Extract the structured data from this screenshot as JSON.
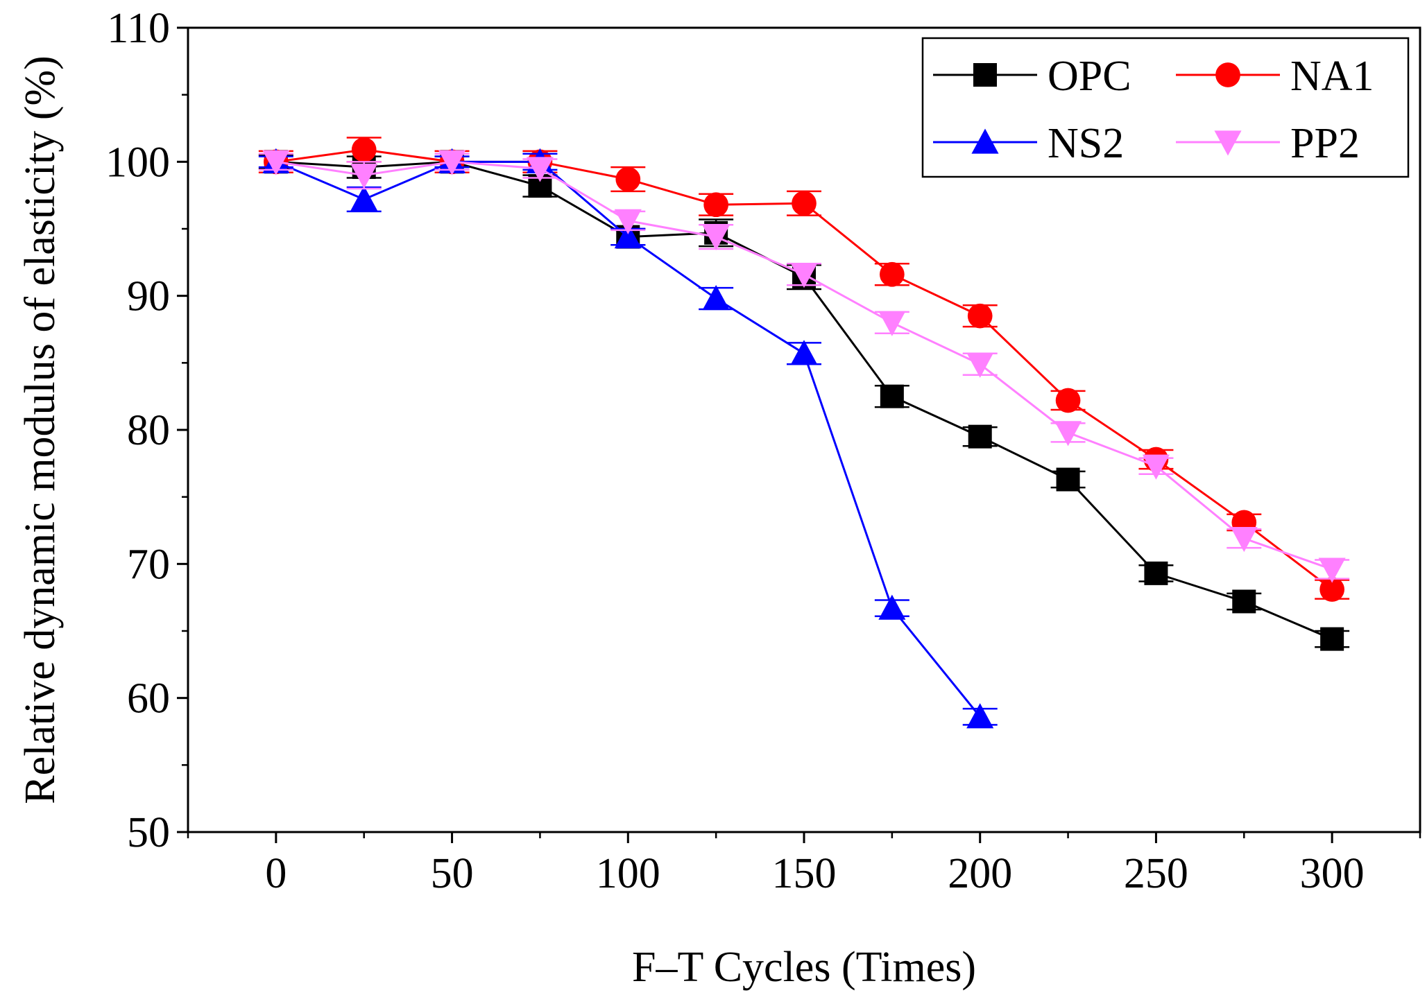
{
  "chart_data": {
    "type": "line",
    "xlabel": "F–T Cycles (Times)",
    "ylabel": "Relative dynamic modulus of elasticity (%)",
    "xlim": [
      -25,
      325
    ],
    "ylim": [
      50,
      110
    ],
    "x_ticks": [
      0,
      50,
      100,
      150,
      200,
      250,
      300
    ],
    "y_ticks": [
      50,
      60,
      70,
      80,
      90,
      100,
      110
    ],
    "x_tick_labels": [
      "0",
      "50",
      "100",
      "150",
      "200",
      "250",
      "300"
    ],
    "y_tick_labels": [
      "50",
      "60",
      "70",
      "80",
      "90",
      "100",
      "110"
    ],
    "legend_position": "top-right",
    "series": [
      {
        "name": "OPC",
        "color": "#000000",
        "marker": "square",
        "x": [
          0,
          25,
          50,
          75,
          100,
          125,
          150,
          175,
          200,
          225,
          250,
          275,
          300
        ],
        "y": [
          100,
          99.6,
          100,
          98.2,
          94.4,
          94.7,
          91.4,
          82.5,
          79.5,
          76.3,
          69.3,
          67.2,
          64.4
        ],
        "err": [
          0.5,
          0.8,
          0.4,
          0.8,
          0.6,
          1.0,
          0.9,
          0.8,
          0.7,
          0.6,
          0.6,
          0.6,
          0.6
        ]
      },
      {
        "name": "NA1",
        "color": "#ff0000",
        "marker": "circle",
        "x": [
          0,
          25,
          50,
          75,
          100,
          125,
          150,
          175,
          200,
          225,
          250,
          275,
          300
        ],
        "y": [
          100,
          100.9,
          100,
          100,
          98.7,
          96.8,
          96.9,
          91.6,
          88.5,
          82.2,
          77.8,
          73.1,
          68.1
        ],
        "err": [
          0.8,
          0.9,
          0.8,
          0.8,
          0.9,
          0.8,
          0.9,
          0.8,
          0.8,
          0.7,
          0.7,
          0.6,
          0.7
        ]
      },
      {
        "name": "NS2",
        "color": "#0000ff",
        "marker": "triangle-up",
        "x": [
          0,
          25,
          50,
          75,
          100,
          125,
          150,
          175,
          200
        ],
        "y": [
          100,
          97.2,
          100,
          100,
          94.4,
          89.8,
          85.7,
          66.7,
          58.6
        ],
        "err": [
          0.4,
          0.9,
          0.4,
          0.6,
          0.6,
          0.8,
          0.8,
          0.6,
          0.6
        ]
      },
      {
        "name": "PP2",
        "color": "#ff80ff",
        "marker": "triangle-down",
        "x": [
          0,
          25,
          50,
          75,
          100,
          125,
          150,
          175,
          200,
          225,
          250,
          275,
          300
        ],
        "y": [
          100,
          99,
          100,
          99.5,
          95.6,
          94.4,
          91.6,
          88,
          84.9,
          79.8,
          77.3,
          71.9,
          69.6
        ],
        "err": [
          0.6,
          1.0,
          0.6,
          0.7,
          0.7,
          0.9,
          0.8,
          0.8,
          0.8,
          0.7,
          0.6,
          0.7,
          0.7
        ]
      }
    ]
  }
}
